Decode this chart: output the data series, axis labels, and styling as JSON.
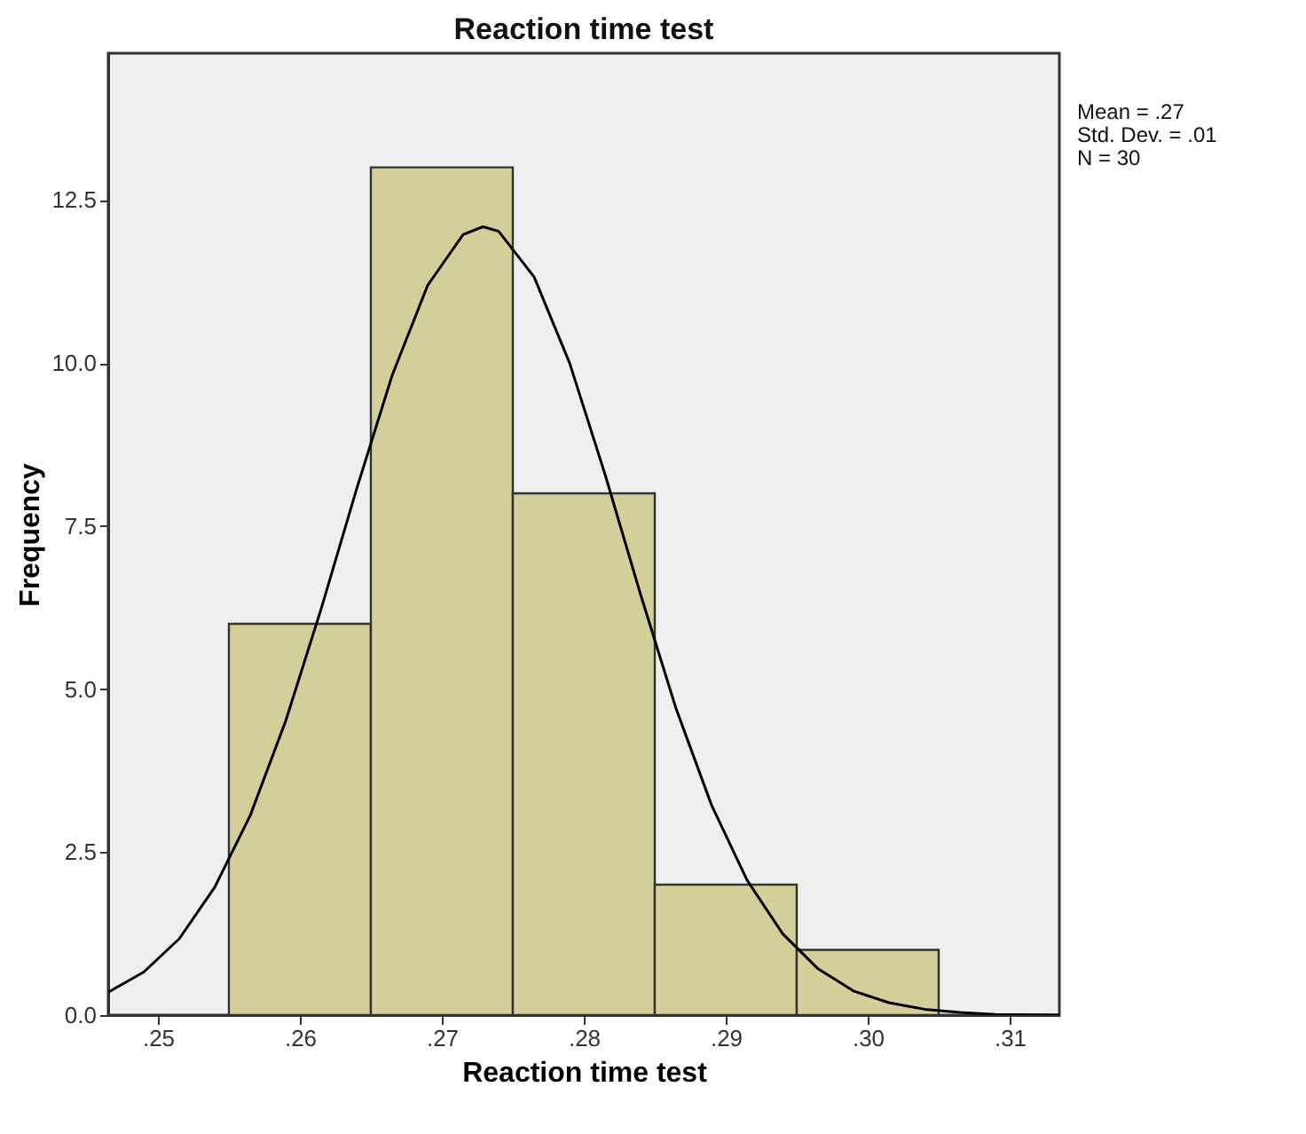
{
  "chart_data": {
    "type": "histogram",
    "title": "Reaction time test",
    "xlabel": "Reaction time test",
    "ylabel": "Frequency",
    "bins": [
      0.255,
      0.265,
      0.275,
      0.285,
      0.295,
      0.305
    ],
    "values": [
      6,
      13,
      8,
      2,
      1
    ],
    "color": "#d3cf98",
    "series": [
      {
        "type": "line",
        "color": "#000000",
        "x": [
          0.2465,
          0.249,
          0.2515,
          0.254,
          0.2565,
          0.259,
          0.2615,
          0.264,
          0.2665,
          0.269,
          0.2715,
          0.2729,
          0.274,
          0.2765,
          0.279,
          0.2815,
          0.284,
          0.2865,
          0.289,
          0.2915,
          0.294,
          0.2965,
          0.299,
          0.3015,
          0.304,
          0.3065,
          0.309,
          0.3135
        ],
        "values": [
          0.35,
          0.66,
          1.17,
          1.96,
          3.06,
          4.51,
          6.23,
          8.07,
          9.81,
          11.19,
          11.97,
          12.09,
          12.02,
          11.32,
          10.0,
          8.29,
          6.45,
          4.7,
          3.22,
          2.07,
          1.25,
          0.71,
          0.37,
          0.19,
          0.09,
          0.04,
          0.01,
          0.0
        ]
      }
    ],
    "xlim": [
      0.2465,
      0.3135
    ],
    "ylim": [
      0,
      14.75
    ],
    "xticks": [
      {
        "value": 0.25,
        "label": ".25"
      },
      {
        "value": 0.26,
        "label": ".26"
      },
      {
        "value": 0.27,
        "label": ".27"
      },
      {
        "value": 0.28,
        "label": ".28"
      },
      {
        "value": 0.29,
        "label": ".29"
      },
      {
        "value": 0.3,
        "label": ".30"
      },
      {
        "value": 0.31,
        "label": ".31"
      }
    ],
    "yticks": [
      {
        "value": 0,
        "label": "0.0"
      },
      {
        "value": 2.5,
        "label": "2.5"
      },
      {
        "value": 5,
        "label": "5.0"
      },
      {
        "value": 7.5,
        "label": "7.5"
      },
      {
        "value": 10,
        "label": "10.0"
      },
      {
        "value": 12.5,
        "label": "12.5"
      }
    ],
    "annotations": [
      "Mean = .27",
      "Std. Dev. = .01",
      "N = 30"
    ],
    "grid": false
  }
}
